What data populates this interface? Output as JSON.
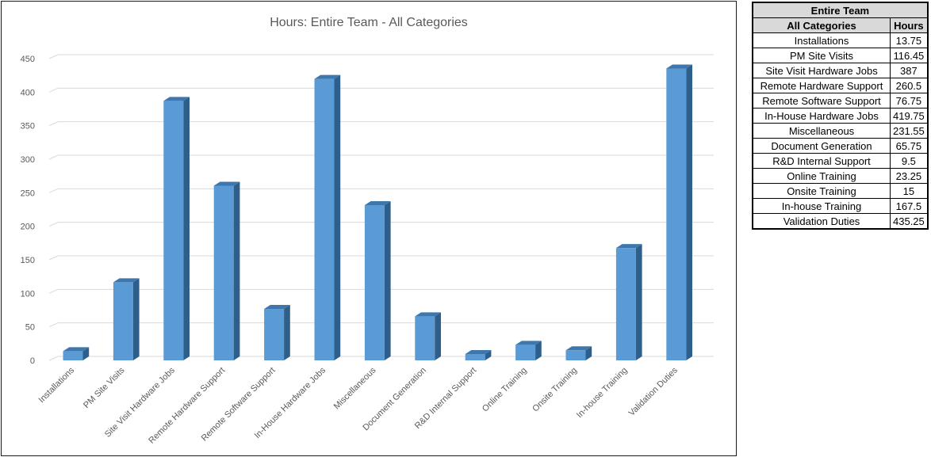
{
  "chart_data": {
    "type": "bar",
    "title": "Hours: Entire Team - All Categories",
    "categories": [
      "Installations",
      "PM Site Visits",
      "Site Visit Hardware Jobs",
      "Remote Hardware Support",
      "Remote Software Support",
      "In-House Hardware Jobs",
      "Miscellaneous",
      "Document Generation",
      "R&D Internal Support",
      "Online Training",
      "Onsite Training",
      "In-house Training",
      "Validation Duties"
    ],
    "values": [
      13.75,
      116.45,
      387,
      260.5,
      76.75,
      419.75,
      231.55,
      65.75,
      9.5,
      23.25,
      15,
      167.5,
      435.25
    ],
    "ylim": [
      0,
      450
    ],
    "yticks": [
      0,
      50,
      100,
      150,
      200,
      250,
      300,
      350,
      400,
      450
    ],
    "grid": true,
    "bar_color": "#5b9bd5",
    "bar_side_color": "#2e5f8a",
    "bar_top_color": "#3f77ad",
    "three_d": true
  },
  "table": {
    "title": "Entire Team",
    "header_category": "All Categories",
    "header_value": "Hours",
    "rows": [
      {
        "category": "Installations",
        "hours": "13.75"
      },
      {
        "category": "PM Site Visits",
        "hours": "116.45"
      },
      {
        "category": "Site Visit Hardware Jobs",
        "hours": "387"
      },
      {
        "category": "Remote Hardware Support",
        "hours": "260.5"
      },
      {
        "category": "Remote Software Support",
        "hours": "76.75"
      },
      {
        "category": "In-House Hardware Jobs",
        "hours": "419.75"
      },
      {
        "category": "Miscellaneous",
        "hours": "231.55"
      },
      {
        "category": "Document Generation",
        "hours": "65.75"
      },
      {
        "category": "R&D Internal Support",
        "hours": "9.5"
      },
      {
        "category": "Online Training",
        "hours": "23.25"
      },
      {
        "category": "Onsite Training",
        "hours": "15"
      },
      {
        "category": "In-house Training",
        "hours": "167.5"
      },
      {
        "category": "Validation Duties",
        "hours": "435.25"
      }
    ]
  }
}
